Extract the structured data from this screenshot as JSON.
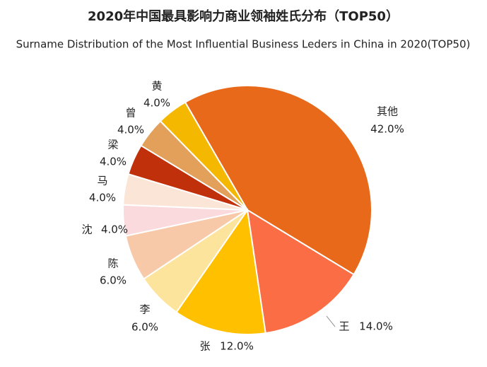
{
  "chart_data": {
    "type": "pie",
    "title": "2020年中国最具影响力商业领袖姓氏分布（TOP50）",
    "subtitle": "Surname Distribution of the Most Influential Business Leders in China in 2020(TOP50)",
    "categories": [
      "其他",
      "王",
      "张",
      "李",
      "陈",
      "沈",
      "马",
      "梁",
      "曾",
      "黄"
    ],
    "values": [
      42,
      14,
      12,
      6,
      6,
      4,
      4,
      4,
      4,
      4
    ],
    "value_labels": [
      "42.0%",
      "14.0%",
      "12.0%",
      "6.0%",
      "6.0%",
      "4.0%",
      "4.0%",
      "4.0%",
      "4.0%",
      "4.0%"
    ],
    "colors": [
      "#e8691a",
      "#fb6d44",
      "#ffc000",
      "#fde49c",
      "#f7c9a9",
      "#fadadd",
      "#fbe5d6",
      "#c0300a",
      "#e2a05a",
      "#f5b800"
    ]
  }
}
